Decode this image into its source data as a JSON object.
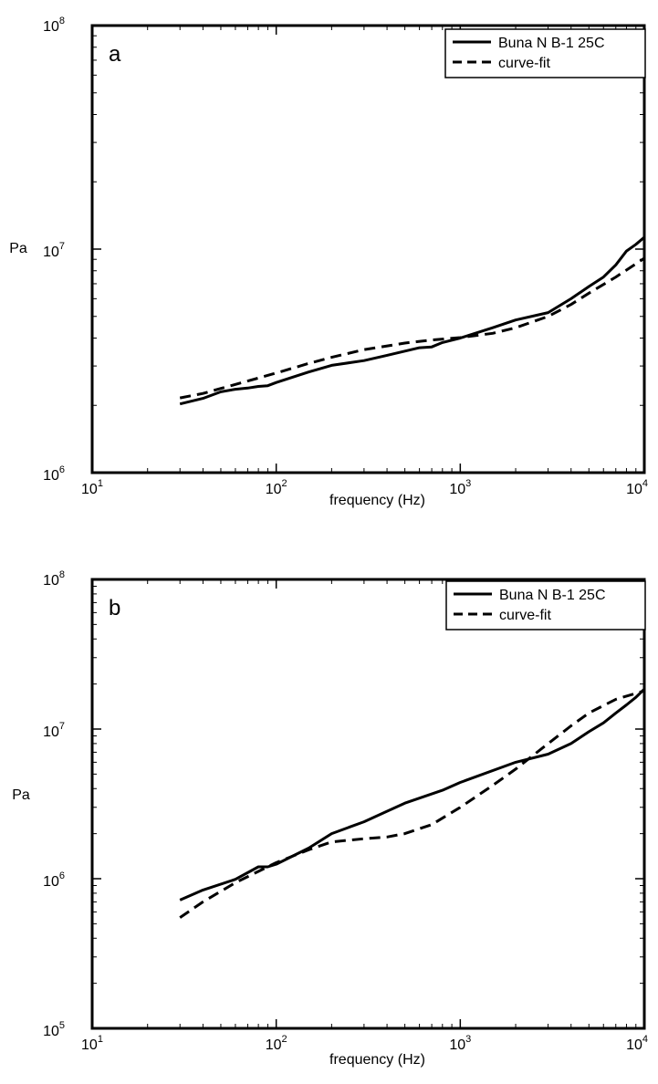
{
  "chart_data": [
    {
      "type": "line",
      "panel_label": "a",
      "xlabel": "frequency (Hz)",
      "ylabel": "Pa",
      "xscale": "log",
      "yscale": "log",
      "xlim": [
        10,
        10000
      ],
      "ylim": [
        1000000,
        100000000
      ],
      "x_ticks": [
        {
          "base": "10",
          "exp": "1"
        },
        {
          "base": "10",
          "exp": "2"
        },
        {
          "base": "10",
          "exp": "3"
        },
        {
          "base": "10",
          "exp": "4"
        }
      ],
      "y_ticks": [
        {
          "base": "10",
          "exp": "6"
        },
        {
          "base": "10",
          "exp": "7"
        },
        {
          "base": "10",
          "exp": "8"
        }
      ],
      "legend_position": "top-right",
      "series": [
        {
          "name": "Buna N B-1 25C",
          "style": "solid",
          "x": [
            30,
            40,
            50,
            60,
            70,
            80,
            90,
            100,
            150,
            200,
            300,
            400,
            600,
            700,
            800,
            1000,
            1500,
            2000,
            3000,
            4000,
            5000,
            6000,
            7000,
            8000,
            9000,
            10000
          ],
          "y": [
            2030000,
            2150000,
            2300000,
            2360000,
            2390000,
            2430000,
            2450000,
            2530000,
            2820000,
            3020000,
            3170000,
            3350000,
            3620000,
            3650000,
            3820000,
            4000000,
            4450000,
            4820000,
            5200000,
            6000000,
            6800000,
            7500000,
            8500000,
            9800000,
            10500000,
            11300000
          ]
        },
        {
          "name": "curve-fit",
          "style": "dashed",
          "x": [
            30,
            40,
            50,
            70,
            100,
            150,
            200,
            300,
            500,
            700,
            1000,
            1500,
            2000,
            3000,
            4000,
            5000,
            7000,
            10000
          ],
          "y": [
            2160000,
            2260000,
            2380000,
            2570000,
            2790000,
            3080000,
            3280000,
            3550000,
            3800000,
            3920000,
            4020000,
            4200000,
            4450000,
            5000000,
            5650000,
            6350000,
            7500000,
            9100000
          ]
        }
      ]
    },
    {
      "type": "line",
      "panel_label": "b",
      "xlabel": "frequency (Hz)",
      "ylabel": "Pa",
      "xscale": "log",
      "yscale": "log",
      "xlim": [
        10,
        10000
      ],
      "ylim": [
        100000,
        100000000
      ],
      "x_ticks": [
        {
          "base": "10",
          "exp": "1"
        },
        {
          "base": "10",
          "exp": "2"
        },
        {
          "base": "10",
          "exp": "3"
        },
        {
          "base": "10",
          "exp": "4"
        }
      ],
      "y_ticks": [
        {
          "base": "10",
          "exp": "5"
        },
        {
          "base": "10",
          "exp": "6"
        },
        {
          "base": "10",
          "exp": "7"
        },
        {
          "base": "10",
          "exp": "8"
        }
      ],
      "legend_position": "top-right",
      "series": [
        {
          "name": "Buna N B-1 25C",
          "style": "solid",
          "x": [
            30,
            40,
            60,
            80,
            90,
            100,
            150,
            200,
            300,
            500,
            800,
            1000,
            2000,
            3000,
            4000,
            5000,
            6000,
            7000,
            8000,
            9000,
            10000
          ],
          "y": [
            720000,
            840000,
            990000,
            1200000,
            1200000,
            1250000,
            1600000,
            2000000,
            2400000,
            3200000,
            3900000,
            4400000,
            6000000,
            6800000,
            8000000,
            9600000,
            11000000,
            12800000,
            14500000,
            16300000,
            18500000
          ]
        },
        {
          "name": "curve-fit",
          "style": "dashed",
          "x": [
            30,
            40,
            60,
            100,
            150,
            200,
            300,
            400,
            500,
            700,
            1000,
            1500,
            2000,
            3000,
            4000,
            5000,
            7000,
            10000
          ],
          "y": [
            550000,
            700000,
            940000,
            1280000,
            1560000,
            1760000,
            1850000,
            1900000,
            2000000,
            2300000,
            3000000,
            4200000,
            5400000,
            8000000,
            10500000,
            12800000,
            15800000,
            18000000
          ]
        }
      ]
    }
  ]
}
